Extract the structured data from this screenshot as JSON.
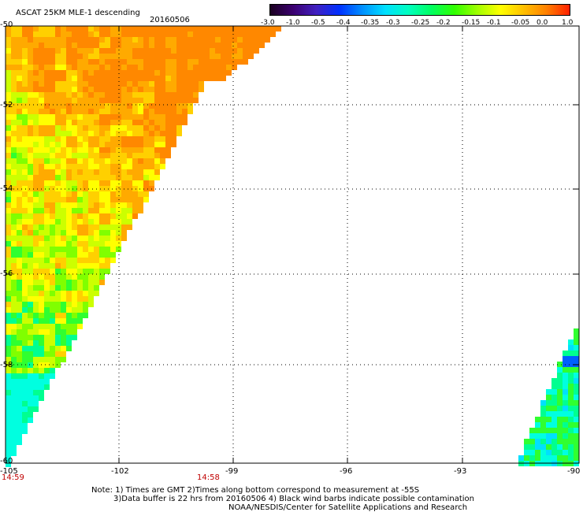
{
  "header": {
    "title": "ASCAT 25KM MLE-1 descending",
    "date": "20160506"
  },
  "colorbar": {
    "colors": [
      "#1a0020",
      "#3b0070",
      "#4020c0",
      "#0030ff",
      "#0090ff",
      "#00e0ff",
      "#00ffc0",
      "#00ff60",
      "#30ff00",
      "#a0ff00",
      "#ffff00",
      "#ffc000",
      "#ff8000",
      "#ff2000"
    ],
    "labels": [
      "-3.0",
      "-1.0",
      "-0.5",
      "-0.4",
      "-0.35",
      "-0.3",
      "-0.25",
      "-0.2",
      "-0.15",
      "-0.1",
      "-0.05",
      "0.0",
      "1.0"
    ]
  },
  "axes": {
    "lat_labels": [
      "-50",
      "-52",
      "-54",
      "-56",
      "-58",
      "-60"
    ],
    "lon_labels": [
      "-105",
      "-102",
      "-99",
      "-96",
      "-93",
      "-90"
    ],
    "time_labels": [
      "14:59",
      "14:58"
    ]
  },
  "notes": {
    "line1": "Note: 1) Times are GMT 2)Times along bottom correspond to measurement at -55S",
    "line2": "3)Data buffer is 22 hrs from 20160506 4) Black wind barbs indicate possible contamination",
    "line3": "NOAA/NESDIS/Center for Satellite Applications and Research"
  }
}
